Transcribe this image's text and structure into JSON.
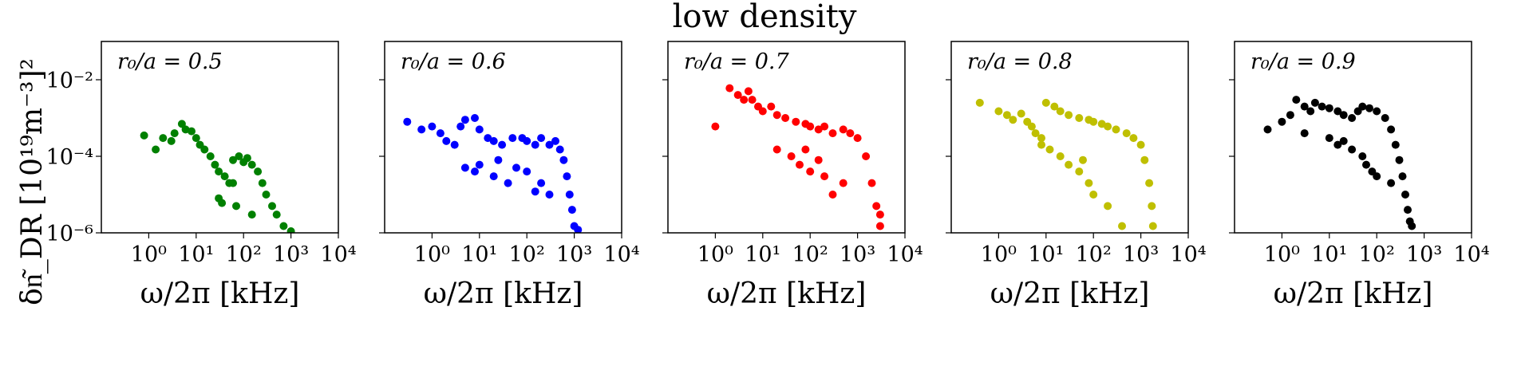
{
  "figure_title": "low density",
  "ylabel": "δn͂_DR [10¹⁹m⁻³]²",
  "chart_data": {
    "type": "scatter",
    "title": "low density",
    "xlabel": "ω/2π [kHz]",
    "ylabel": "δn͂_DR [10¹⁹m⁻³]²",
    "xscale": "log",
    "yscale": "log",
    "xlim": [
      0.1,
      10000
    ],
    "ylim": [
      1e-06,
      0.1
    ],
    "x_ticks": [
      1,
      10,
      100,
      1000,
      10000
    ],
    "x_tick_labels": [
      "10⁰",
      "10¹",
      "10²",
      "10³",
      "10⁴"
    ],
    "y_ticks": [
      1e-06,
      0.0001,
      0.01
    ],
    "y_tick_labels": [
      "10⁻⁶",
      "10⁻⁴",
      "10⁻²"
    ],
    "panels": [
      {
        "annotation": "r₀/a = 0.5",
        "color": "#008000",
        "points": [
          [
            0.8,
            0.00035
          ],
          [
            1.4,
            0.00015
          ],
          [
            2.0,
            0.0003
          ],
          [
            3.0,
            0.00025
          ],
          [
            3.5,
            0.0004
          ],
          [
            5.0,
            0.0007
          ],
          [
            6.0,
            0.0005
          ],
          [
            8.0,
            0.00045
          ],
          [
            10.0,
            0.0003
          ],
          [
            12.0,
            0.0002
          ],
          [
            15.0,
            0.00015
          ],
          [
            20.0,
            0.0001
          ],
          [
            25.0,
            6e-05
          ],
          [
            30.0,
            4e-05
          ],
          [
            40.0,
            3e-05
          ],
          [
            50.0,
            2e-05
          ],
          [
            60.0,
            8e-05
          ],
          [
            80.0,
            0.0001
          ],
          [
            100.0,
            7e-05
          ],
          [
            120.0,
            9e-05
          ],
          [
            150.0,
            6e-05
          ],
          [
            200.0,
            4e-05
          ],
          [
            250.0,
            2e-05
          ],
          [
            300.0,
            1e-05
          ],
          [
            400.0,
            5e-06
          ],
          [
            500.0,
            3e-06
          ],
          [
            700.0,
            1.5e-06
          ],
          [
            1000.0,
            1.1e-06
          ],
          [
            30.0,
            8e-06
          ],
          [
            70.0,
            5e-06
          ],
          [
            150.0,
            3e-06
          ],
          [
            60.0,
            2e-05
          ],
          [
            35.0,
            6e-06
          ]
        ]
      },
      {
        "annotation": "r₀/a = 0.6",
        "color": "#0000ff",
        "points": [
          [
            0.3,
            0.0008
          ],
          [
            0.6,
            0.0005
          ],
          [
            1.0,
            0.0006
          ],
          [
            1.5,
            0.0004
          ],
          [
            2.0,
            0.00025
          ],
          [
            3.0,
            0.0002
          ],
          [
            4.0,
            0.0006
          ],
          [
            5.0,
            0.0009
          ],
          [
            8.0,
            0.001
          ],
          [
            10.0,
            0.0005
          ],
          [
            15.0,
            0.0003
          ],
          [
            20.0,
            0.00025
          ],
          [
            30.0,
            0.0002
          ],
          [
            50.0,
            0.0003
          ],
          [
            80.0,
            0.0003
          ],
          [
            100.0,
            0.00025
          ],
          [
            150.0,
            0.0002
          ],
          [
            200.0,
            0.0003
          ],
          [
            300.0,
            0.0002
          ],
          [
            400.0,
            0.00025
          ],
          [
            500.0,
            0.00015
          ],
          [
            600.0,
            8e-05
          ],
          [
            700.0,
            3e-05
          ],
          [
            800.0,
            1e-05
          ],
          [
            900.0,
            4e-06
          ],
          [
            1000.0,
            1.5e-06
          ],
          [
            1200.0,
            1.2e-06
          ],
          [
            5.0,
            5e-05
          ],
          [
            8.0,
            4e-05
          ],
          [
            10.0,
            6e-05
          ],
          [
            20.0,
            3e-05
          ],
          [
            40.0,
            2e-05
          ],
          [
            60.0,
            5e-05
          ],
          [
            100.0,
            4e-05
          ],
          [
            200.0,
            2e-05
          ],
          [
            150.0,
            1.2e-05
          ],
          [
            300.0,
            1e-05
          ],
          [
            25.0,
            8e-05
          ]
        ]
      },
      {
        "annotation": "r₀/a = 0.7",
        "color": "#ff0000",
        "points": [
          [
            1.0,
            0.0006
          ],
          [
            2.0,
            0.006
          ],
          [
            3.0,
            0.004
          ],
          [
            4.0,
            0.003
          ],
          [
            5.0,
            0.005
          ],
          [
            6.0,
            0.003
          ],
          [
            8.0,
            0.002
          ],
          [
            10.0,
            0.0015
          ],
          [
            15.0,
            0.002
          ],
          [
            20.0,
            0.0012
          ],
          [
            30.0,
            0.001
          ],
          [
            50.0,
            0.0008
          ],
          [
            80.0,
            0.0007
          ],
          [
            100.0,
            0.0006
          ],
          [
            150.0,
            0.0005
          ],
          [
            200.0,
            0.0006
          ],
          [
            300.0,
            0.0004
          ],
          [
            500.0,
            0.0005
          ],
          [
            700.0,
            0.0004
          ],
          [
            1000.0,
            0.0003
          ],
          [
            1500.0,
            0.0001
          ],
          [
            2000.0,
            2e-05
          ],
          [
            2500.0,
            5e-06
          ],
          [
            3000.0,
            1.5e-06
          ],
          [
            3000.0,
            3e-06
          ],
          [
            20.0,
            0.00015
          ],
          [
            40.0,
            0.0001
          ],
          [
            60.0,
            6e-05
          ],
          [
            100.0,
            4e-05
          ],
          [
            200.0,
            3e-05
          ],
          [
            300.0,
            1e-05
          ],
          [
            500.0,
            2e-05
          ],
          [
            150.0,
            8e-05
          ],
          [
            80.0,
            0.00015
          ]
        ]
      },
      {
        "annotation": "r₀/a = 0.8",
        "color": "#bfbf00",
        "points": [
          [
            0.4,
            0.0025
          ],
          [
            1.0,
            0.0015
          ],
          [
            1.5,
            0.0012
          ],
          [
            2.0,
            0.0009
          ],
          [
            3.0,
            0.0013
          ],
          [
            4.0,
            0.0008
          ],
          [
            5.0,
            0.0006
          ],
          [
            6.0,
            0.0004
          ],
          [
            8.0,
            0.0003
          ],
          [
            10.0,
            0.0025
          ],
          [
            15.0,
            0.002
          ],
          [
            20.0,
            0.0015
          ],
          [
            30.0,
            0.0012
          ],
          [
            50.0,
            0.001
          ],
          [
            80.0,
            0.0009
          ],
          [
            100.0,
            0.0008
          ],
          [
            150.0,
            0.0007
          ],
          [
            200.0,
            0.0006
          ],
          [
            300.0,
            0.0005
          ],
          [
            500.0,
            0.0004
          ],
          [
            700.0,
            0.0003
          ],
          [
            1000.0,
            0.0002
          ],
          [
            1200.0,
            8e-05
          ],
          [
            1500.0,
            2e-05
          ],
          [
            1700.0,
            5e-06
          ],
          [
            1800.0,
            1.5e-06
          ],
          [
            8.0,
            0.0002
          ],
          [
            12.0,
            0.00015
          ],
          [
            20.0,
            0.0001
          ],
          [
            30.0,
            6e-05
          ],
          [
            50.0,
            4e-05
          ],
          [
            80.0,
            2e-05
          ],
          [
            100.0,
            1e-05
          ],
          [
            60.0,
            8e-05
          ],
          [
            200.0,
            5e-06
          ],
          [
            400.0,
            1.5e-06
          ]
        ]
      },
      {
        "annotation": "r₀/a = 0.9",
        "color": "#000000",
        "points": [
          [
            0.5,
            0.0005
          ],
          [
            1.0,
            0.0008
          ],
          [
            1.5,
            0.0012
          ],
          [
            2.0,
            0.003
          ],
          [
            3.0,
            0.002
          ],
          [
            4.0,
            0.0015
          ],
          [
            5.0,
            0.0025
          ],
          [
            7.0,
            0.002
          ],
          [
            10.0,
            0.0018
          ],
          [
            15.0,
            0.0015
          ],
          [
            20.0,
            0.0012
          ],
          [
            30.0,
            0.001
          ],
          [
            40.0,
            0.0015
          ],
          [
            50.0,
            0.002
          ],
          [
            70.0,
            0.0018
          ],
          [
            100.0,
            0.0015
          ],
          [
            150.0,
            0.001
          ],
          [
            200.0,
            0.0005
          ],
          [
            250.0,
            0.0002
          ],
          [
            300.0,
            8e-05
          ],
          [
            350.0,
            3e-05
          ],
          [
            400.0,
            1e-05
          ],
          [
            450.0,
            4e-06
          ],
          [
            500.0,
            2e-06
          ],
          [
            550.0,
            1.5e-06
          ],
          [
            10.0,
            0.0003
          ],
          [
            15.0,
            0.0002
          ],
          [
            20.0,
            0.00025
          ],
          [
            30.0,
            0.00015
          ],
          [
            50.0,
            0.0001
          ],
          [
            60.0,
            6e-05
          ],
          [
            80.0,
            4e-05
          ],
          [
            100.0,
            3e-05
          ],
          [
            3.0,
            0.0004
          ],
          [
            200.0,
            2e-05
          ]
        ]
      }
    ]
  }
}
